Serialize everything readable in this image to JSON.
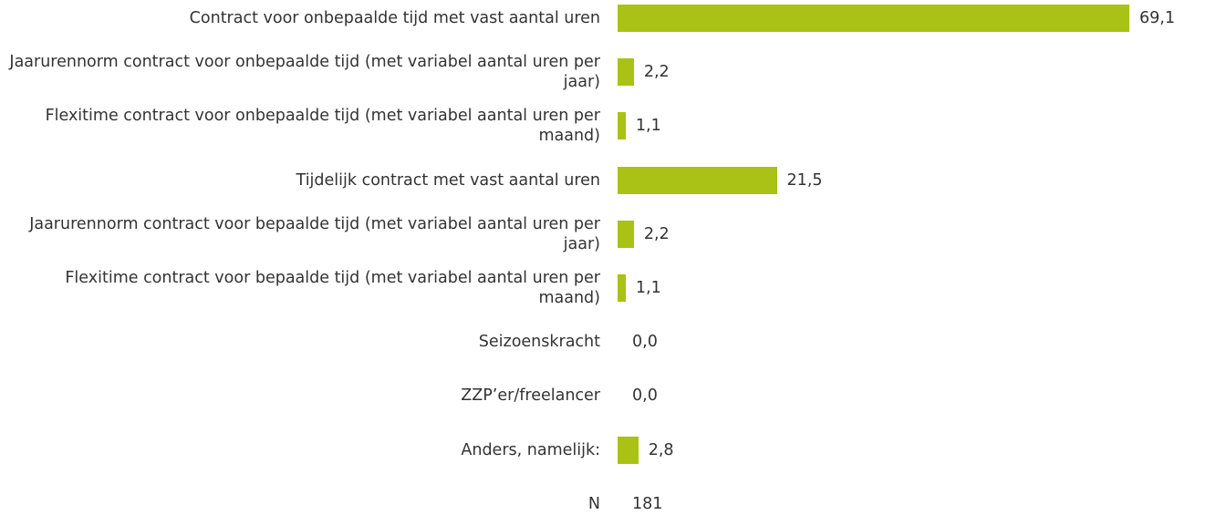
{
  "chart_data": {
    "type": "bar",
    "orientation": "horizontal",
    "color": "#a9c215",
    "categories": [
      "Contract voor onbepaalde tijd met vast aantal uren",
      "Jaarurennorm contract voor onbepaalde tijd (met variabel aantal uren per jaar)",
      "Flexitime contract voor onbepaalde tijd (met variabel aantal uren per maand)",
      "Tijdelijk contract met vast aantal uren",
      "Jaarurennorm contract voor bepaalde tijd (met variabel aantal uren per jaar)",
      "Flexitime contract voor bepaalde tijd (met variabel aantal uren per maand)",
      "Seizoenskracht",
      "ZZP’er/freelancer",
      "Anders, namelijk:"
    ],
    "values": [
      69.1,
      2.2,
      1.1,
      21.5,
      2.2,
      1.1,
      0.0,
      0.0,
      2.8
    ],
    "value_labels": [
      "69,1",
      "2,2",
      "1,1",
      "21,5",
      "2,2",
      "1,1",
      "0,0",
      "0,0",
      "2,8"
    ],
    "n_label": "N",
    "n_value": 181
  }
}
